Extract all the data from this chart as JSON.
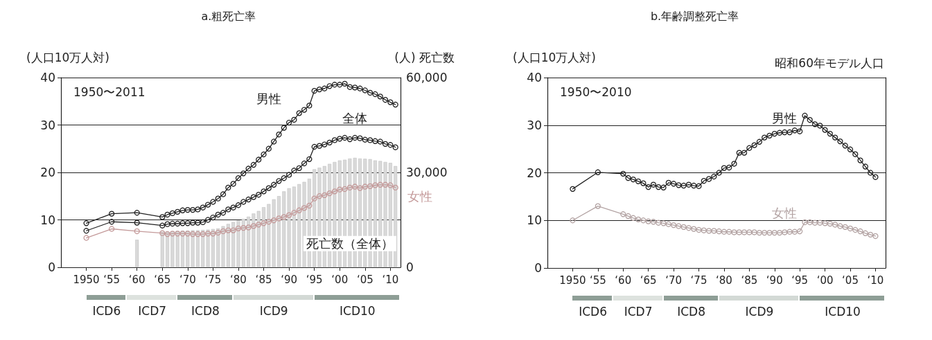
{
  "chart_data": [
    {
      "type": "line",
      "title": "a.粗死亡率",
      "ylabel": "(人口10万人対)",
      "y2label": "(人) 死亡数",
      "annotations": [
        "1950〜2011",
        "ICD6",
        "ICD7",
        "ICD8",
        "ICD9",
        "ICD10"
      ],
      "categories": [
        null,
        null,
        null,
        null,
        null,
        "1950",
        null,
        null,
        null,
        null,
        "‘55",
        null,
        null,
        null,
        null,
        "‘60",
        null,
        null,
        null,
        null,
        "‘65",
        null,
        null,
        null,
        null,
        "‘70",
        null,
        null,
        null,
        null,
        "‘75",
        null,
        null,
        null,
        null,
        "‘80",
        null,
        null,
        null,
        null,
        "‘85",
        null,
        null,
        null,
        null,
        "‘90",
        null,
        null,
        null,
        null,
        "‘95",
        null,
        null,
        null,
        null,
        "‘00",
        null,
        null,
        null,
        null,
        "‘05",
        null,
        null,
        null,
        null,
        "‘10",
        null,
        null
      ],
      "ylim": [
        0,
        40
      ],
      "yticks": [
        0,
        10,
        20,
        30,
        40
      ],
      "y2lim": [
        0,
        60000
      ],
      "y2ticks": [
        0,
        {
          "value": 15000,
          "label": null
        },
        {
          "value": 30000,
          "label": "30,000"
        },
        {
          "value": 45000,
          "label": null
        },
        {
          "value": 60000,
          "label": "60,000"
        }
      ],
      "grid": "y",
      "marker": "circle",
      "line_style": "solid",
      "series": [
        {
          "type": "bar",
          "axis": "y2",
          "name": "死亡数（全体）",
          "color": "#d9d9d9",
          "values": [
            null,
            null,
            null,
            null,
            null,
            null,
            null,
            null,
            null,
            null,
            null,
            null,
            null,
            null,
            null,
            8700,
            null,
            null,
            null,
            null,
            11200,
            11300,
            11400,
            11500,
            11600,
            11600,
            11700,
            11700,
            11800,
            11900,
            12100,
            12300,
            13000,
            13700,
            14300,
            14800,
            15300,
            16000,
            17000,
            17800,
            19000,
            20000,
            21500,
            22500,
            24000,
            25000,
            25500,
            26300,
            27000,
            28000,
            31000,
            31500,
            32000,
            32700,
            33300,
            33800,
            34000,
            34400,
            34600,
            34400,
            34300,
            34200,
            33800,
            33600,
            33300,
            33000,
            32000,
            null
          ]
        },
        {
          "name": "男性",
          "color": "#222222",
          "values": [
            null,
            null,
            null,
            null,
            null,
            9.3,
            null,
            null,
            null,
            null,
            11.3,
            null,
            null,
            null,
            null,
            11.5,
            null,
            null,
            null,
            null,
            10.6,
            11.1,
            11.4,
            11.7,
            12.0,
            12.1,
            12.1,
            12.2,
            12.6,
            13.2,
            13.8,
            14.5,
            15.4,
            16.8,
            17.6,
            18.8,
            19.8,
            20.8,
            21.6,
            22.7,
            23.8,
            25.0,
            26.5,
            28.0,
            29.4,
            30.5,
            31.1,
            32.5,
            33.2,
            34.1,
            37.2,
            37.5,
            37.7,
            38.2,
            38.5,
            38.5,
            38.7,
            38.0,
            37.9,
            37.7,
            37.3,
            36.8,
            36.5,
            36.0,
            35.3,
            34.8,
            34.3,
            null
          ]
        },
        {
          "name": "全体",
          "color": "#222222",
          "values": [
            null,
            null,
            null,
            null,
            null,
            7.7,
            null,
            null,
            null,
            null,
            9.6,
            null,
            null,
            null,
            null,
            9.4,
            null,
            null,
            null,
            null,
            8.8,
            9.1,
            9.2,
            9.2,
            9.3,
            9.3,
            9.4,
            9.4,
            9.5,
            10.0,
            10.5,
            11.1,
            11.5,
            12.2,
            12.6,
            13.1,
            13.8,
            14.3,
            14.8,
            15.3,
            16.0,
            16.7,
            17.4,
            18.2,
            18.8,
            19.5,
            20.4,
            20.9,
            21.9,
            22.8,
            25.4,
            25.6,
            25.9,
            26.3,
            26.8,
            27.1,
            27.3,
            27.0,
            27.3,
            27.2,
            26.9,
            26.8,
            26.6,
            26.5,
            26.0,
            25.8,
            25.3,
            null
          ]
        },
        {
          "name": "女性",
          "color": "#c49a9a",
          "values": [
            null,
            null,
            null,
            null,
            null,
            6.2,
            null,
            null,
            null,
            null,
            8.1,
            null,
            null,
            null,
            null,
            7.6,
            null,
            null,
            null,
            null,
            7.2,
            7.0,
            7.1,
            7.1,
            7.1,
            7.1,
            7.0,
            7.0,
            7.0,
            7.1,
            7.1,
            7.3,
            7.6,
            7.8,
            7.8,
            8.2,
            8.3,
            8.4,
            8.7,
            9.0,
            9.3,
            9.6,
            9.9,
            10.3,
            10.6,
            11.0,
            11.5,
            12.0,
            12.5,
            13.0,
            14.5,
            15.0,
            15.2,
            15.6,
            16.0,
            16.4,
            16.5,
            16.8,
            17.0,
            16.7,
            17.0,
            17.1,
            17.3,
            17.4,
            17.4,
            17.3,
            16.8,
            null
          ]
        }
      ]
    },
    {
      "type": "line",
      "title": "b.年齢調整死亡率",
      "ylabel": "(人口10万人対)",
      "annotations": [
        "1950〜2010",
        "昭和60年モデル人口",
        "ICD6",
        "ICD7",
        "ICD8",
        "ICD9",
        "ICD10"
      ],
      "categories": [
        null,
        null,
        null,
        null,
        null,
        "1950",
        null,
        null,
        null,
        null,
        "‘55",
        null,
        null,
        null,
        null,
        "‘60",
        null,
        null,
        null,
        null,
        "‘65",
        null,
        null,
        null,
        null,
        "‘70",
        null,
        null,
        null,
        null,
        "‘75",
        null,
        null,
        null,
        null,
        "‘80",
        null,
        null,
        null,
        null,
        "‘85",
        null,
        null,
        null,
        null,
        "‘90",
        null,
        null,
        null,
        null,
        "‘95",
        null,
        null,
        null,
        null,
        "‘00",
        null,
        null,
        null,
        null,
        "‘05",
        null,
        null,
        null,
        null,
        "‘10",
        null,
        null
      ],
      "ylim": [
        0,
        40
      ],
      "yticks": [
        0,
        10,
        20,
        30,
        40
      ],
      "grid": "y",
      "marker": "circle",
      "line_style": "solid",
      "series": [
        {
          "name": "男性",
          "color": "#222222",
          "values": [
            null,
            null,
            null,
            null,
            null,
            16.6,
            null,
            null,
            null,
            null,
            20.1,
            null,
            null,
            null,
            null,
            19.8,
            18.9,
            18.6,
            18.2,
            17.8,
            17.0,
            17.5,
            17.0,
            16.9,
            17.9,
            17.7,
            17.4,
            17.3,
            17.5,
            17.3,
            17.2,
            18.3,
            18.7,
            19.2,
            20.0,
            21.0,
            21.1,
            21.9,
            24.2,
            24.2,
            25.2,
            25.8,
            26.5,
            27.4,
            27.8,
            28.2,
            28.4,
            28.5,
            28.5,
            28.9,
            28.7,
            32.0,
            31.1,
            30.2,
            29.9,
            29.0,
            28.2,
            27.4,
            26.6,
            25.7,
            24.9,
            23.9,
            22.6,
            21.3,
            20.0,
            19.1,
            null,
            null
          ]
        },
        {
          "name": "女性",
          "color": "#b3a3a3",
          "values": [
            null,
            null,
            null,
            null,
            null,
            10.0,
            null,
            null,
            null,
            null,
            13.0,
            null,
            null,
            null,
            null,
            11.3,
            10.9,
            10.5,
            10.2,
            10.0,
            9.8,
            9.7,
            9.5,
            9.4,
            9.2,
            9.0,
            8.8,
            8.6,
            8.4,
            8.2,
            8.0,
            7.9,
            7.8,
            7.8,
            7.7,
            7.6,
            7.6,
            7.5,
            7.5,
            7.5,
            7.5,
            7.5,
            7.4,
            7.4,
            7.4,
            7.4,
            7.4,
            7.5,
            7.6,
            7.6,
            7.7,
            9.6,
            9.6,
            9.5,
            9.5,
            9.4,
            9.3,
            9.1,
            8.8,
            8.6,
            8.3,
            8.0,
            7.7,
            7.3,
            7.0,
            6.7,
            null,
            null
          ]
        }
      ]
    }
  ]
}
